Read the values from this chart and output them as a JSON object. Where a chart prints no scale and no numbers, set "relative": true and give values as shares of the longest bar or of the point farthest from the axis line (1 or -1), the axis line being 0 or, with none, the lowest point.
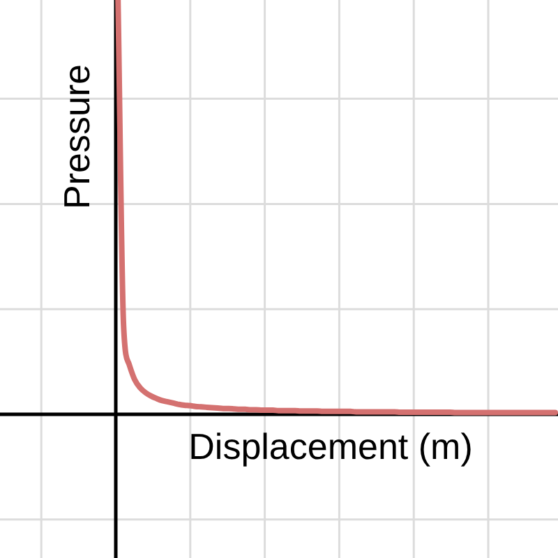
{
  "chart_data": {
    "type": "line",
    "xlabel": "Displacement (m)",
    "ylabel": "Pressure",
    "relative": true,
    "grid": true,
    "legend": false,
    "line_style": "solid",
    "categories": [
      null,
      null,
      null,
      null,
      null,
      null,
      null,
      null,
      null,
      null,
      null,
      null,
      null,
      null,
      null,
      null,
      null,
      null,
      null,
      null,
      null,
      null,
      null,
      null,
      null,
      null,
      null,
      null,
      null,
      null,
      null,
      null,
      null,
      null,
      null,
      null,
      null,
      null,
      null,
      null,
      null,
      null,
      null,
      null,
      null,
      null,
      null,
      null,
      null,
      null,
      null,
      null,
      null,
      null,
      null,
      null,
      null,
      null,
      null,
      null,
      null,
      null,
      null,
      null,
      null,
      null,
      null,
      null,
      null,
      null,
      null,
      null,
      null,
      null,
      null,
      null,
      null,
      null,
      null,
      null
    ],
    "series": [
      {
        "color": "#d47170",
        "values": [
          1,
          0.216,
          0.121,
          0.084,
          0.064,
          0.052,
          0.044,
          0.038,
          0.033,
          0.03,
          0.027,
          0.024,
          0.022,
          0.021,
          0.019,
          0.018,
          0.017,
          0.016,
          0.015,
          0.014,
          0.014,
          0.013,
          0.012,
          0.012,
          0.011,
          0.011,
          0.01,
          0.01,
          0.01,
          0.009,
          0.009,
          0.009,
          0.009,
          0.008,
          0.008,
          0.008,
          0.008,
          0.007,
          0.007,
          0.007,
          0.007,
          0.007,
          0.007,
          0.006,
          0.006,
          0.006,
          0.006,
          0.006,
          0.006,
          0.006,
          0.006,
          0.005,
          0.005,
          0.005,
          0.005,
          0.005,
          0.005,
          0.005,
          0.005,
          0.005,
          0.005,
          0.004,
          0.004,
          0.004,
          0.004,
          0.004,
          0.004,
          0.004,
          0.004,
          0.004,
          0.004,
          0.004,
          0.004,
          0.004,
          0.004,
          0.004,
          0.004,
          0.004,
          0.004,
          0.004
        ]
      }
    ]
  }
}
